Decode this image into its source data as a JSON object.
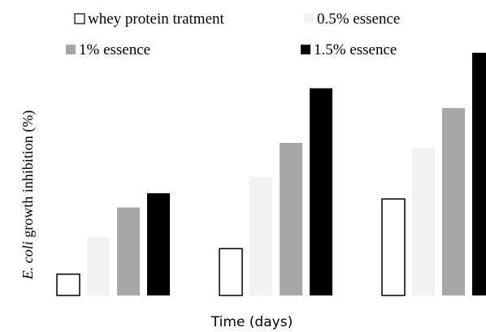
{
  "chart_data": {
    "type": "bar",
    "categories": [
      "",
      "",
      ""
    ],
    "series": [
      {
        "name": "whey protein tratment",
        "values": [
          3,
          6.6,
          13.6
        ],
        "fill": "#ffffff",
        "stroke": "#000000"
      },
      {
        "name": "0.5% essence",
        "values": [
          8.2,
          16.7,
          20.8
        ],
        "fill": "#f2f2f2",
        "stroke": "none"
      },
      {
        "name": "1% essence",
        "values": [
          12.4,
          21.5,
          26.4
        ],
        "fill": "#a6a6a6",
        "stroke": "none"
      },
      {
        "name": "1.5% essence",
        "values": [
          14.4,
          29.2,
          34.2
        ],
        "fill": "#000000",
        "stroke": "none"
      }
    ],
    "ylim": [
      0,
      35
    ],
    "xlabel": "Time (days)",
    "ylabel_italic": "E. coli",
    "ylabel_rest": " growth inhibition (%)",
    "grid": false,
    "legend_position": "top"
  }
}
